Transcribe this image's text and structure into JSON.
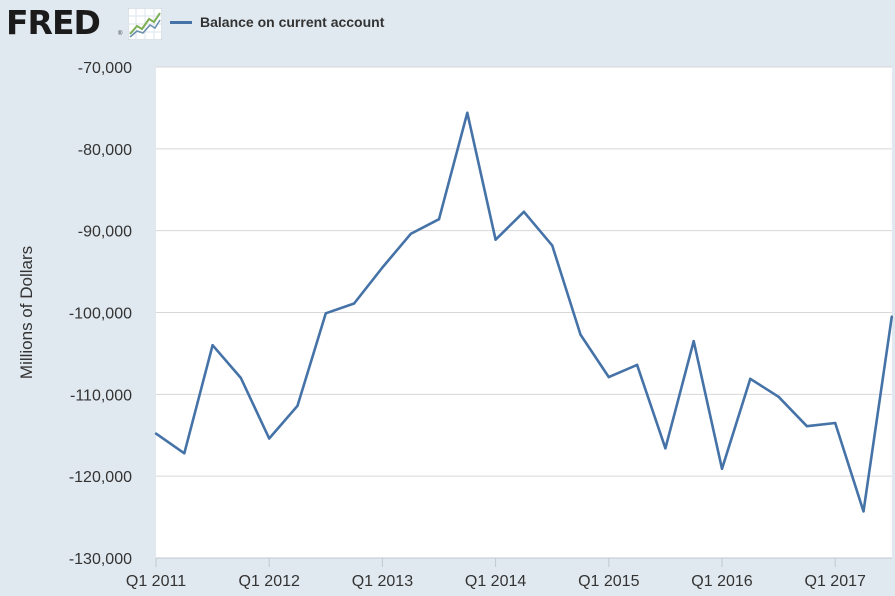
{
  "header": {
    "logo_text": "FRED",
    "logo_reg": "®",
    "logo_icon": "fred-trend-chart-icon",
    "legend_label": "Balance on current account"
  },
  "colors": {
    "background": "#e1e9f0",
    "plot_background": "#ffffff",
    "series": "#4572a7",
    "grid": "#d8d8d8",
    "text": "#333333"
  },
  "chart_data": {
    "type": "line",
    "title": "",
    "xlabel": "",
    "ylabel": "Millions of Dollars",
    "ylim": [
      -130000,
      -70000
    ],
    "yticks": [
      -70000,
      -80000,
      -90000,
      -100000,
      -110000,
      -120000,
      -130000
    ],
    "ytick_labels": [
      "-70,000",
      "-80,000",
      "-90,000",
      "-100,000",
      "-110,000",
      "-120,000",
      "-130,000"
    ],
    "xtick_labels": [
      "Q1 2011",
      "Q1 2012",
      "Q1 2013",
      "Q1 2014",
      "Q1 2015",
      "Q1 2016",
      "Q1 2017"
    ],
    "grid": true,
    "legend_position": "top",
    "series": [
      {
        "name": "Balance on current account",
        "x": [
          "Q1 2011",
          "Q2 2011",
          "Q3 2011",
          "Q4 2011",
          "Q1 2012",
          "Q2 2012",
          "Q3 2012",
          "Q4 2012",
          "Q1 2013",
          "Q2 2013",
          "Q3 2013",
          "Q4 2013",
          "Q1 2014",
          "Q2 2014",
          "Q3 2014",
          "Q4 2014",
          "Q1 2015",
          "Q2 2015",
          "Q3 2015",
          "Q4 2015",
          "Q1 2016",
          "Q2 2016",
          "Q3 2016",
          "Q4 2016",
          "Q1 2017",
          "Q2 2017",
          "Q3 2017"
        ],
        "values": [
          -114800,
          -117200,
          -104000,
          -108000,
          -115400,
          -111400,
          -100100,
          -98900,
          -94500,
          -90400,
          -88600,
          -75600,
          -91100,
          -87700,
          -91800,
          -102700,
          -107900,
          -106400,
          -116600,
          -103500,
          -119100,
          -108100,
          -110300,
          -113900,
          -113500,
          -124300,
          -100500
        ]
      }
    ]
  }
}
